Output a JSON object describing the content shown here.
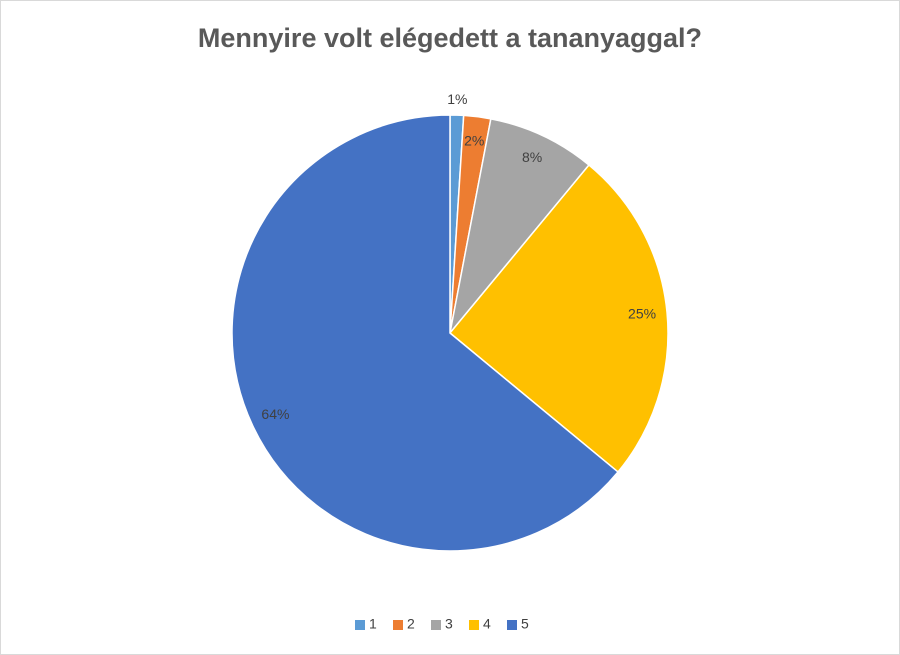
{
  "chart_data": {
    "type": "pie",
    "title": "Mennyire volt elégedett a tananyaggal?",
    "categories": [
      "1",
      "2",
      "3",
      "4",
      "5"
    ],
    "values": [
      1,
      2,
      8,
      25,
      64
    ],
    "value_labels": [
      "1%",
      "2%",
      "8%",
      "25%",
      "64%"
    ],
    "colors": [
      "#5b9bd5",
      "#ed7d31",
      "#a5a5a5",
      "#ffc000",
      "#4472c4"
    ],
    "legend": "bottom"
  }
}
